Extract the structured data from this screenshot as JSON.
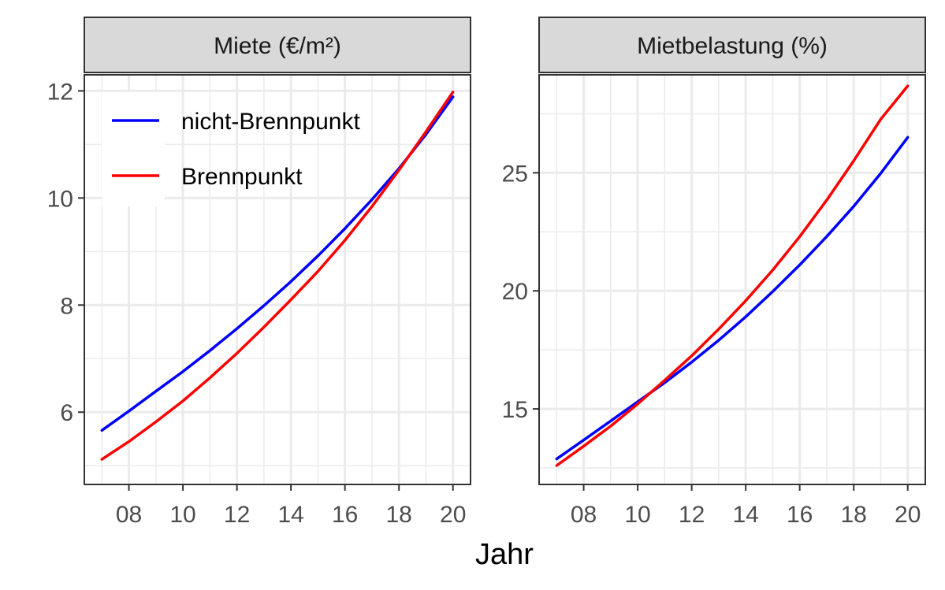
{
  "colors": {
    "nicht_brennpunkt": "#0000FF",
    "brennpunkt": "#FF0000",
    "strip_fill": "#D9D9D9",
    "grid": "#EBEBEB",
    "border": "#333333"
  },
  "legend": {
    "position": "top-left inside left panel",
    "entries": [
      {
        "label": "nicht-Brennpunkt",
        "color": "#0000FF"
      },
      {
        "label": "Brennpunkt",
        "color": "#FF0000"
      }
    ]
  },
  "chart_data": [
    {
      "type": "line",
      "title": "Miete (€/m²)",
      "xlabel": "Jahr",
      "ylabel": "",
      "grid": true,
      "x": [
        7,
        8,
        9,
        10,
        11,
        12,
        13,
        14,
        15,
        16,
        17,
        18,
        19,
        20
      ],
      "x_ticks": [
        8,
        10,
        12,
        14,
        16,
        18,
        20
      ],
      "x_tick_labels": [
        "08",
        "10",
        "12",
        "14",
        "16",
        "18",
        "20"
      ],
      "y_ticks": [
        6,
        8,
        10,
        12
      ],
      "y_tick_labels": [
        "6",
        "8",
        "10",
        "12"
      ],
      "xlim": [
        6.35,
        20.65
      ],
      "ylim": [
        4.65,
        12.3
      ],
      "series": [
        {
          "name": "nicht-Brennpunkt",
          "color": "#0000FF",
          "values": [
            5.66,
            6.02,
            6.39,
            6.76,
            7.15,
            7.56,
            7.99,
            8.44,
            8.92,
            9.43,
            9.97,
            10.55,
            11.19,
            11.89
          ]
        },
        {
          "name": "Brennpunkt",
          "color": "#FF0000",
          "values": [
            5.12,
            5.45,
            5.82,
            6.21,
            6.64,
            7.1,
            7.59,
            8.1,
            8.63,
            9.21,
            9.84,
            10.52,
            11.24,
            11.98
          ]
        }
      ]
    },
    {
      "type": "line",
      "title": "Mietbelastung (%)",
      "xlabel": "Jahr",
      "ylabel": "",
      "grid": true,
      "x": [
        7,
        8,
        9,
        10,
        11,
        12,
        13,
        14,
        15,
        16,
        17,
        18,
        19,
        20
      ],
      "x_ticks": [
        8,
        10,
        12,
        14,
        16,
        18,
        20
      ],
      "x_tick_labels": [
        "08",
        "10",
        "12",
        "14",
        "16",
        "18",
        "20"
      ],
      "y_ticks": [
        15,
        20,
        25
      ],
      "y_tick_labels": [
        "15",
        "20",
        "25"
      ],
      "xlim": [
        6.35,
        20.65
      ],
      "ylim": [
        11.8,
        29.15
      ],
      "series": [
        {
          "name": "nicht-Brennpunkt",
          "color": "#0000FF",
          "values": [
            12.88,
            13.68,
            14.49,
            15.3,
            16.11,
            16.98,
            17.91,
            18.9,
            19.97,
            21.1,
            22.3,
            23.58,
            24.98,
            26.5
          ]
        },
        {
          "name": "Brennpunkt",
          "color": "#FF0000",
          "values": [
            12.6,
            13.42,
            14.27,
            15.21,
            16.21,
            17.25,
            18.38,
            19.58,
            20.88,
            22.3,
            23.84,
            25.51,
            27.27,
            28.68
          ]
        }
      ]
    }
  ]
}
